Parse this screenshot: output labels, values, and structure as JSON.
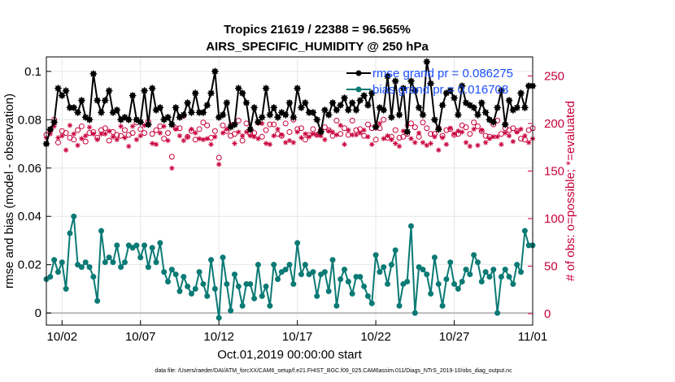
{
  "chart_data": {
    "type": "line",
    "title": "Tropics 21619 / 22388 = 96.565%",
    "subtitle": "AIRS_SPECIFIC_HUMIDITY @ 250 hPa",
    "xlabel": "Oct.01,2019 00:00:00 start",
    "ylabel": "rmse and bias (model - observation)",
    "y2label": "# of obs: o=possible; *=evaluated",
    "xlim": [
      0,
      31
    ],
    "ylim": [
      -0.005,
      0.106
    ],
    "y2lim": [
      -12,
      270
    ],
    "xticks": [
      1,
      6,
      11,
      16,
      21,
      26,
      31
    ],
    "xtick_labels": [
      "10/02",
      "10/07",
      "10/12",
      "10/17",
      "10/22",
      "10/27",
      "11/01"
    ],
    "yticks": [
      0,
      0.02,
      0.04,
      0.06,
      0.08,
      0.1
    ],
    "ytick_labels": [
      "0",
      "0.02",
      "0.04",
      "0.06",
      "0.08",
      "0.1"
    ],
    "y2ticks": [
      0,
      50,
      100,
      150,
      200,
      250
    ],
    "y2tick_labels": [
      "0",
      "50",
      "100",
      "150",
      "200",
      "250"
    ],
    "grid": true,
    "legend": [
      {
        "label": "rmse grand pr = 0.086275",
        "color": "#000000"
      },
      {
        "label": "bias grand pr = 0.016708",
        "color": "#0b7a75"
      }
    ],
    "x": [
      0.0,
      0.25,
      0.5,
      0.75,
      1.0,
      1.25,
      1.5,
      1.75,
      2.0,
      2.25,
      2.5,
      2.75,
      3.0,
      3.25,
      3.5,
      3.75,
      4.0,
      4.25,
      4.5,
      4.75,
      5.0,
      5.25,
      5.5,
      5.75,
      6.0,
      6.25,
      6.5,
      6.75,
      7.0,
      7.25,
      7.5,
      7.75,
      8.0,
      8.25,
      8.5,
      8.75,
      9.0,
      9.25,
      9.5,
      9.75,
      10.0,
      10.25,
      10.5,
      10.75,
      11.0,
      11.25,
      11.5,
      11.75,
      12.0,
      12.25,
      12.5,
      12.75,
      13.0,
      13.25,
      13.5,
      13.75,
      14.0,
      14.25,
      14.5,
      14.75,
      15.0,
      15.25,
      15.5,
      15.75,
      16.0,
      16.25,
      16.5,
      16.75,
      17.0,
      17.25,
      17.5,
      17.75,
      18.0,
      18.25,
      18.5,
      18.75,
      19.0,
      19.25,
      19.5,
      19.75,
      20.0,
      20.25,
      20.5,
      20.75,
      21.0,
      21.25,
      21.5,
      21.75,
      22.0,
      22.25,
      22.5,
      22.75,
      23.0,
      23.25,
      23.5,
      23.75,
      24.0,
      24.25,
      24.5,
      24.75,
      25.0,
      25.25,
      25.5,
      25.75,
      26.0,
      26.25,
      26.5,
      26.75,
      27.0,
      27.25,
      27.5,
      27.75,
      28.0,
      28.25,
      28.5,
      28.75,
      29.0,
      29.25,
      29.5,
      29.75,
      30.0,
      30.25,
      30.5,
      30.75,
      31.0
    ],
    "series": [
      {
        "name": "rmse",
        "axis": "left",
        "color": "#000000",
        "values": [
          0.07,
          0.076,
          0.079,
          0.093,
          0.09,
          0.092,
          0.085,
          0.085,
          0.083,
          0.088,
          0.081,
          0.08,
          0.099,
          0.088,
          0.083,
          0.088,
          0.092,
          0.083,
          0.084,
          0.08,
          0.081,
          0.08,
          0.09,
          0.08,
          0.079,
          0.092,
          0.078,
          0.093,
          0.084,
          0.085,
          0.08,
          0.081,
          0.078,
          0.085,
          0.081,
          0.082,
          0.087,
          0.083,
          0.091,
          0.083,
          0.083,
          0.086,
          0.091,
          0.1,
          0.081,
          0.082,
          0.087,
          0.077,
          0.078,
          0.093,
          0.091,
          0.087,
          0.076,
          0.085,
          0.079,
          0.081,
          0.093,
          0.082,
          0.085,
          0.081,
          0.083,
          0.082,
          0.087,
          0.081,
          0.093,
          0.085,
          0.087,
          0.083,
          0.083,
          0.08,
          0.075,
          0.084,
          0.082,
          0.087,
          0.084,
          0.086,
          0.089,
          0.084,
          0.087,
          0.084,
          0.088,
          0.09,
          0.086,
          0.091,
          0.077,
          0.085,
          0.084,
          0.098,
          0.081,
          0.096,
          0.082,
          0.093,
          0.075,
          0.096,
          0.092,
          0.085,
          0.082,
          0.104,
          0.095,
          0.08,
          0.076,
          0.086,
          0.091,
          0.092,
          0.089,
          0.082,
          0.094,
          0.087,
          0.086,
          0.085,
          0.082,
          0.087,
          0.083,
          0.08,
          0.079,
          0.085,
          0.092,
          0.078,
          0.088,
          0.084,
          0.085,
          0.091,
          0.085,
          0.094,
          0.094
        ]
      },
      {
        "name": "bias",
        "axis": "left",
        "color": "#0b7a75",
        "values": [
          0.014,
          0.015,
          0.022,
          0.017,
          0.021,
          0.01,
          0.033,
          0.04,
          0.02,
          0.019,
          0.021,
          0.019,
          0.015,
          0.005,
          0.034,
          0.021,
          0.023,
          0.021,
          0.028,
          0.019,
          0.021,
          0.028,
          0.027,
          0.028,
          0.023,
          0.028,
          0.019,
          0.027,
          0.021,
          0.029,
          0.017,
          0.013,
          0.018,
          0.016,
          0.009,
          0.015,
          0.011,
          0.008,
          0.01,
          0.017,
          0.012,
          0.007,
          0.022,
          0.01,
          -0.002,
          0.023,
          0.012,
          0.001,
          0.016,
          0.011,
          0.003,
          0.012,
          0.012,
          0.006,
          0.02,
          0.007,
          0.011,
          0.003,
          0.02,
          0.014,
          0.017,
          0.018,
          0.02,
          0.012,
          0.029,
          0.016,
          0.02,
          0.016,
          0.017,
          0.007,
          0.016,
          0.017,
          0.009,
          0.022,
          0.003,
          0.014,
          0.018,
          0.013,
          0.008,
          0.015,
          0.015,
          0.011,
          0.007,
          0.004,
          0.024,
          0.017,
          0.019,
          0.012,
          0.02,
          0.026,
          0.003,
          0.012,
          0.013,
          0.036,
          0.0,
          0.019,
          0.018,
          0.016,
          0.008,
          0.023,
          0.012,
          0.003,
          0.014,
          0.021,
          0.012,
          0.01,
          0.013,
          0.018,
          0.016,
          0.024,
          0.021,
          0.013,
          0.017,
          0.015,
          0.018,
          0.0,
          0.015,
          0.018,
          0.015,
          0.012,
          0.02,
          0.017,
          0.034,
          0.028,
          0.028
        ]
      },
      {
        "name": "# obs possible",
        "axis": "right",
        "color": "#c8003c",
        "marker": "circle",
        "values": [
          188,
          193,
          204,
          180,
          192,
          190,
          185,
          183,
          193,
          197,
          181,
          190,
          191,
          185,
          193,
          195,
          182,
          191,
          188,
          187,
          193,
          188,
          190,
          201,
          194,
          190,
          202,
          189,
          193,
          197,
          184,
          190,
          165,
          195,
          195,
          208,
          186,
          192,
          183,
          194,
          201,
          198,
          185,
          192,
          164,
          198,
          192,
          187,
          189,
          203,
          182,
          200,
          189,
          190,
          201,
          186,
          193,
          199,
          199,
          189,
          187,
          200,
          191,
          204,
          194,
          195,
          183,
          188,
          194,
          188,
          193,
          196,
          193,
          187,
          203,
          189,
          195,
          188,
          203,
          193,
          194,
          187,
          199,
          195,
          183,
          195,
          204,
          185,
          186,
          193,
          185,
          186,
          189,
          200,
          196,
          186,
          201,
          195,
          189,
          189,
          195,
          187,
          193,
          194,
          188,
          189,
          198,
          196,
          189,
          201,
          197,
          192,
          187,
          186,
          199,
          203,
          189,
          195,
          193,
          195,
          192,
          184,
          183,
          193,
          195
        ]
      },
      {
        "name": "# obs evaluated",
        "axis": "right",
        "color": "#c8003c",
        "marker": "star",
        "values": [
          185,
          189,
          197,
          185,
          187,
          172,
          198,
          189,
          177,
          184,
          187,
          196,
          189,
          183,
          189,
          189,
          192,
          186,
          183,
          197,
          185,
          176,
          197,
          183,
          187,
          198,
          199,
          179,
          178,
          190,
          197,
          182,
          153,
          194,
          187,
          182,
          186,
          194,
          190,
          184,
          183,
          184,
          178,
          186,
          157,
          190,
          194,
          199,
          179,
          191,
          187,
          191,
          187,
          186,
          184,
          200,
          179,
          178,
          187,
          194,
          188,
          180,
          182,
          180,
          191,
          185,
          189,
          186,
          189,
          188,
          187,
          183,
          192,
          191,
          188,
          198,
          178,
          193,
          188,
          188,
          190,
          193,
          186,
          178,
          195,
          200,
          184,
          187,
          183,
          179,
          176,
          192,
          198,
          184,
          180,
          190,
          180,
          177,
          179,
          186,
          172,
          185,
          178,
          195,
          189,
          192,
          191,
          180,
          176,
          194,
          177,
          193,
          180,
          184,
          186,
          186,
          178,
          190,
          187,
          181,
          191,
          194,
          187,
          180,
          184
        ]
      }
    ],
    "annotations": [
      {
        "text": "data file: /Users/raeder/DAI/ATM_forcXX/CAM6_setup/f.e21.FHIST_BGC.f09_025.CAM6assim.011/Diags_NTrS_2019-10/obs_diag_output.nc",
        "placement": "bottom-center"
      }
    ]
  }
}
